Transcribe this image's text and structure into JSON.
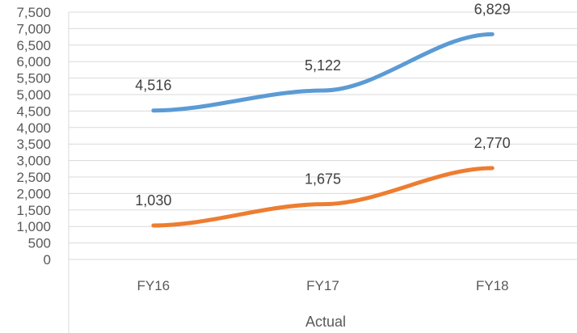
{
  "chart_data": {
    "type": "line",
    "categories": [
      "FY16",
      "FY17",
      "FY18"
    ],
    "group_label": "Actual",
    "series": [
      {
        "values": [
          4516,
          5122,
          6829
        ],
        "color": "#5b9bd5",
        "labels": [
          "4,516",
          "5,122",
          "6,829"
        ]
      },
      {
        "values": [
          1030,
          1675,
          2770
        ],
        "color": "#ed7d31",
        "labels": [
          "1,030",
          "1,675",
          "2,770"
        ]
      }
    ],
    "ylim": [
      0,
      7500
    ],
    "yticks": [
      "0",
      "500",
      "1,000",
      "1,500",
      "2,000",
      "2,500",
      "3,000",
      "3,500",
      "4,000",
      "4,500",
      "5,000",
      "5,500",
      "6,000",
      "6,500",
      "7,000",
      "7,500"
    ],
    "grid": true,
    "legend": "none"
  }
}
